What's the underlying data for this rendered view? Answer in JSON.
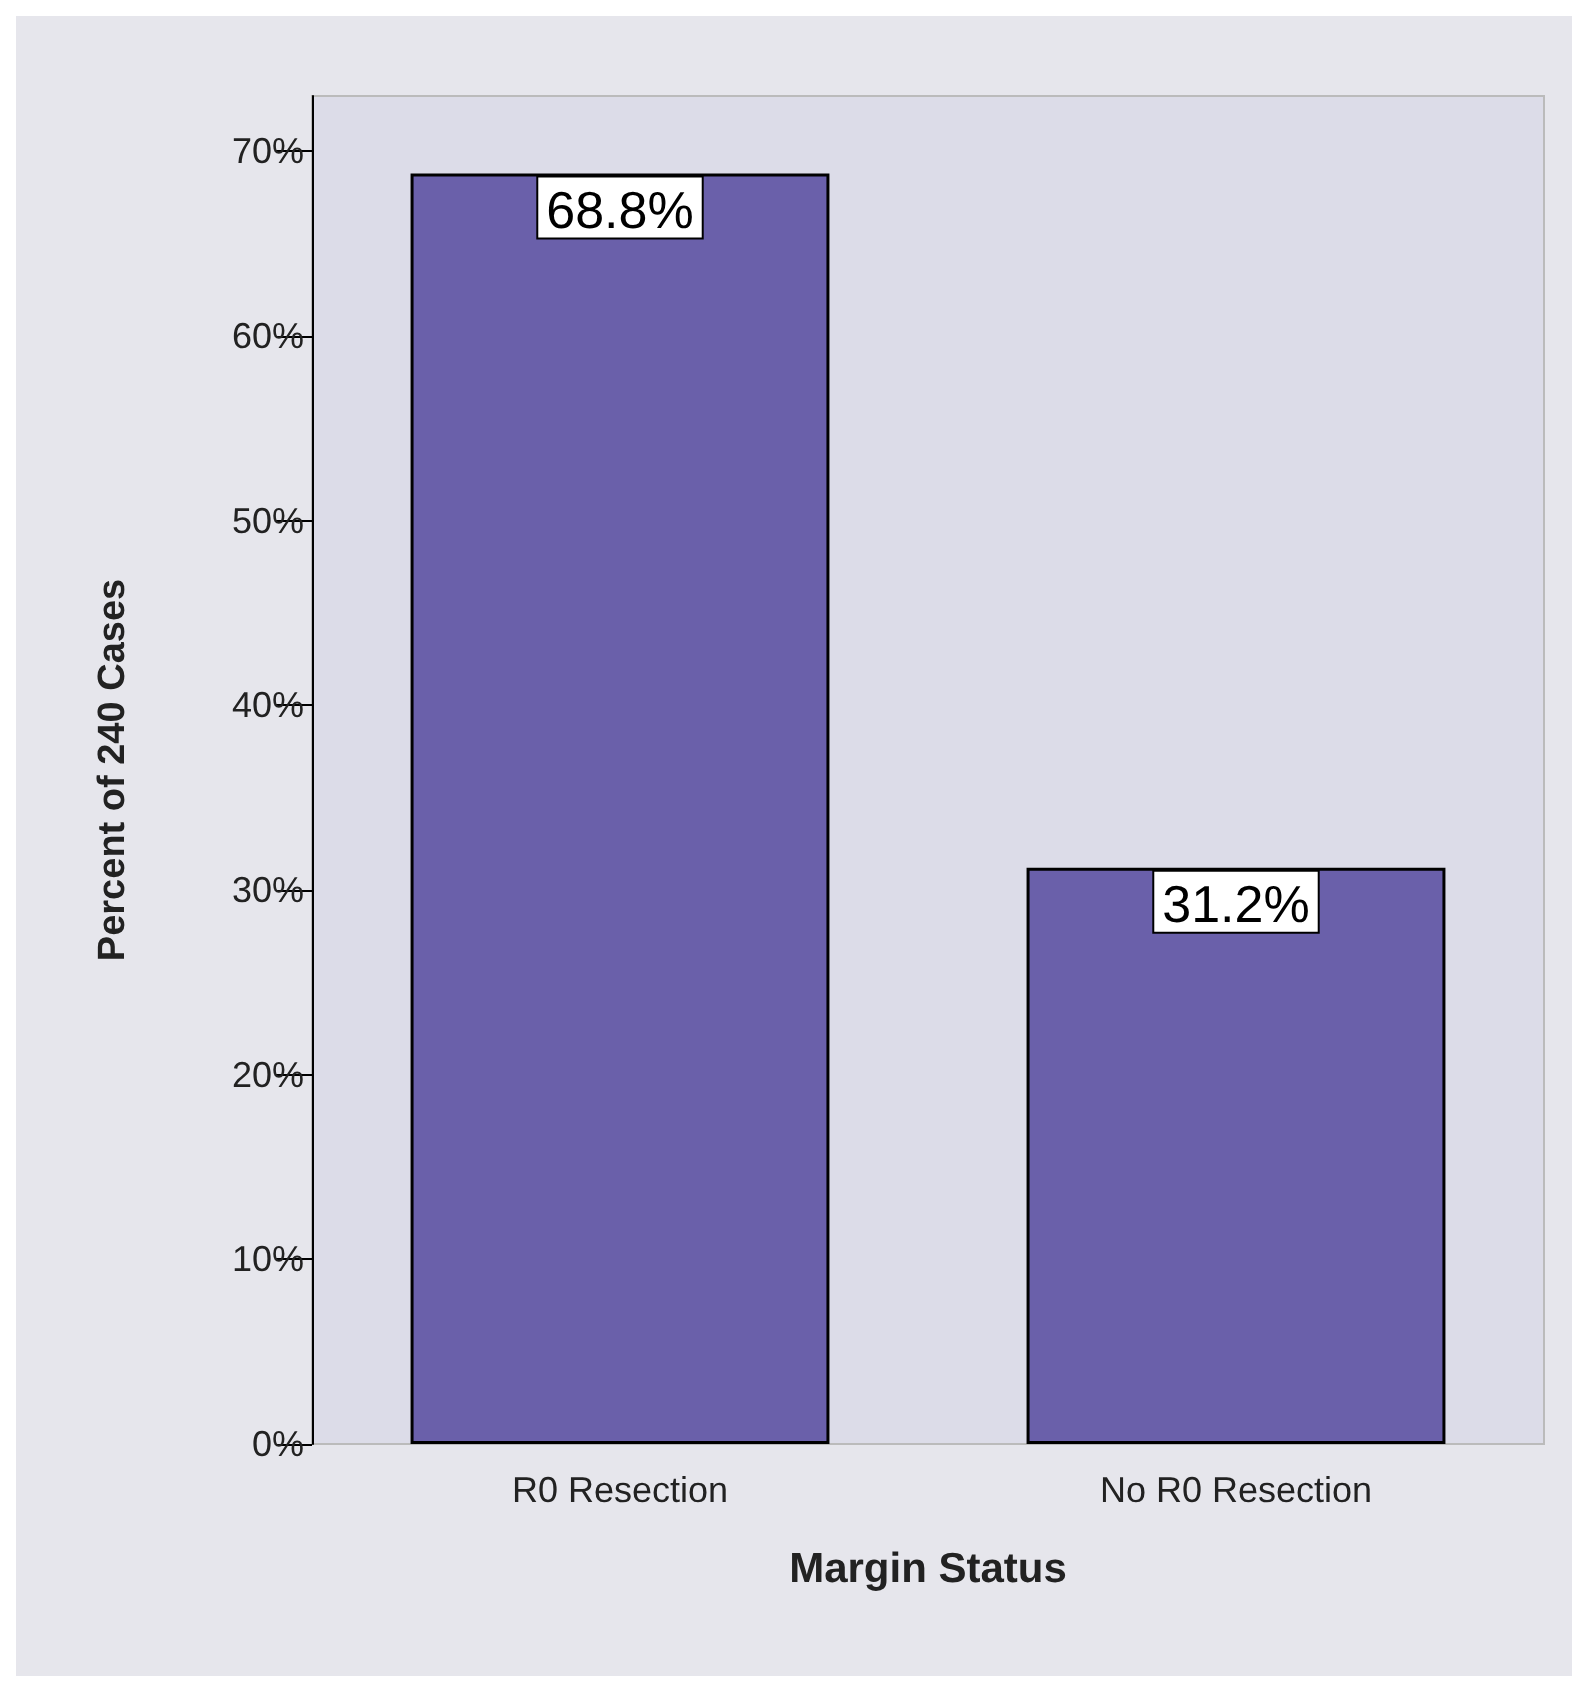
{
  "chart_data": {
    "type": "bar",
    "xlabel": "Margin Status",
    "ylabel": "Percent of 240 Cases",
    "categories": [
      "R0 Resection",
      "No R0 Resection"
    ],
    "values": [
      68.8,
      31.2
    ],
    "value_labels": [
      "68.8%",
      "31.2%"
    ],
    "color": "#6a60aa",
    "ylim": [
      0,
      73
    ],
    "yticks": [
      {
        "value": 0,
        "label": "0%"
      },
      {
        "value": 10,
        "label": "10%"
      },
      {
        "value": 20,
        "label": "20%"
      },
      {
        "value": 30,
        "label": "30%"
      },
      {
        "value": 40,
        "label": "40%"
      },
      {
        "value": 50,
        "label": "50%"
      },
      {
        "value": 60,
        "label": "60%"
      },
      {
        "value": 70,
        "label": "70%"
      }
    ],
    "grid": false
  }
}
